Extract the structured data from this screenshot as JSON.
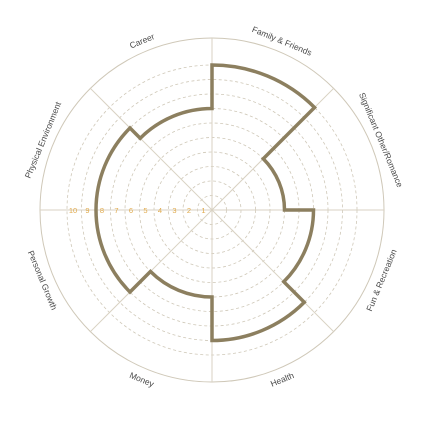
{
  "chart_data": {
    "type": "radial-bar",
    "title": "",
    "categories": [
      "Family & Friends",
      "Significant Other/Romance",
      "Fun & Recreation",
      "Health",
      "Money",
      "Personal Growth",
      "Physical Environment",
      "Career"
    ],
    "values": [
      10,
      5,
      7,
      9,
      6,
      8,
      8,
      7
    ],
    "scale": {
      "min": 0,
      "max": 10,
      "step": 1
    },
    "tick_labels": [
      "1",
      "2",
      "3",
      "4",
      "5",
      "6",
      "7",
      "8",
      "9",
      "10"
    ],
    "grid": true,
    "colors": {
      "outline": "#8c7f5f",
      "grid": "#cfc8b8",
      "spokes": "#d9d2c3",
      "ticks": "#e0a94a",
      "text": "#4a4a4a"
    }
  }
}
